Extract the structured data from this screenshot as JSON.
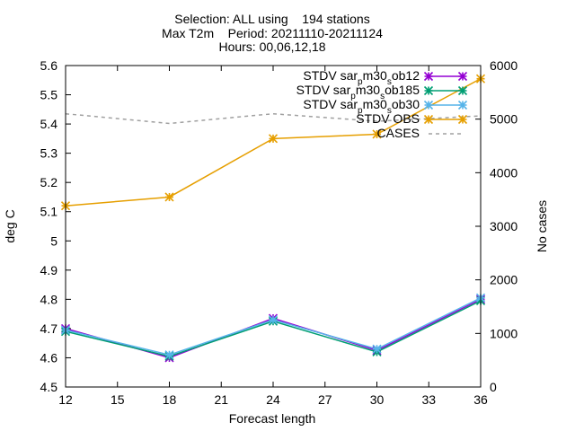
{
  "chart_data": {
    "type": "line",
    "title_lines": [
      "Selection: ALL using    194 stations",
      "Max T2m    Period: 20211110-20211124",
      "Hours: 00,06,12,18"
    ],
    "xlabel": "Forecast length",
    "ylabel": "deg C",
    "y2label": "No cases",
    "xlim": [
      12,
      36
    ],
    "ylim": [
      4.5,
      5.6
    ],
    "y2lim": [
      0,
      6000
    ],
    "xticks": [
      "12",
      "15",
      "18",
      "21",
      "24",
      "27",
      "30",
      "33",
      "36"
    ],
    "yticks": [
      "4.5",
      "4.6",
      "4.7",
      "4.8",
      "4.9",
      "5",
      "5.1",
      "5.2",
      "5.3",
      "5.4",
      "5.5",
      "5.6"
    ],
    "y2ticks": [
      "0",
      "1000",
      "2000",
      "3000",
      "4000",
      "5000",
      "6000"
    ],
    "grid": false,
    "legend_position": "top-right",
    "x": [
      12,
      18,
      24,
      30,
      36
    ],
    "series": [
      {
        "name": "STDV sar_pm30_sob12",
        "name_parts": [
          "STDV sar",
          "p",
          "m30",
          "s",
          "ob12"
        ],
        "axis": "y1",
        "color": "#9400d3",
        "dash": "none",
        "marker": "x",
        "values": [
          4.7,
          4.6,
          4.735,
          4.625,
          4.8
        ]
      },
      {
        "name": "STDV sar_pm30_sob185",
        "name_parts": [
          "STDV sar",
          "p",
          "m30",
          "s",
          "ob185"
        ],
        "axis": "y1",
        "color": "#009e73",
        "dash": "none",
        "marker": "x",
        "values": [
          4.69,
          4.605,
          4.725,
          4.62,
          4.795
        ]
      },
      {
        "name": "STDV sar_pm30_sob30",
        "name_parts": [
          "STDV sar",
          "p",
          "m30",
          "s",
          "ob30"
        ],
        "axis": "y1",
        "color": "#56b4e9",
        "dash": "none",
        "marker": "x",
        "values": [
          4.695,
          4.61,
          4.73,
          4.63,
          4.805
        ]
      },
      {
        "name": "STDV OBS",
        "name_parts": [
          "STDV OBS"
        ],
        "axis": "y1",
        "color": "#e69f00",
        "dash": "none",
        "marker": "x",
        "values": [
          5.12,
          5.15,
          5.35,
          5.365,
          5.555
        ]
      },
      {
        "name": "CASES",
        "name_parts": [
          "CASES"
        ],
        "axis": "y2",
        "color": "#a0a0a0",
        "dash": "4,4",
        "marker": "none",
        "values": [
          5100,
          4920,
          5100,
          4960,
          5060
        ]
      }
    ]
  }
}
